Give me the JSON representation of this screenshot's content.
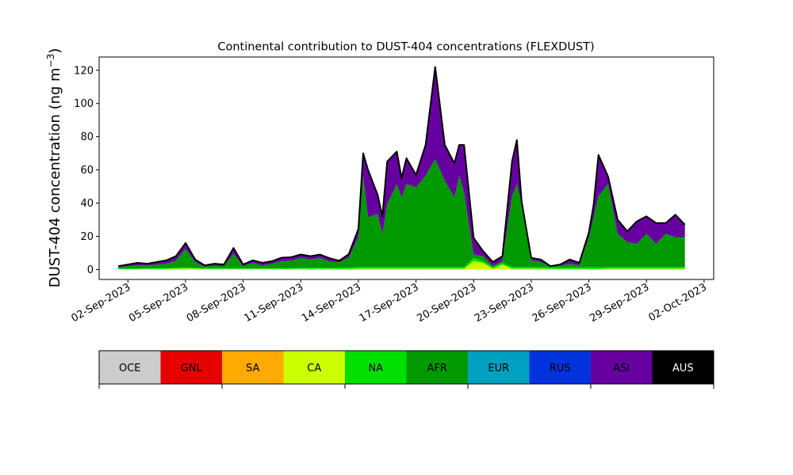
{
  "chart_data": {
    "type": "area",
    "stacked": true,
    "title": "Continental contribution to DUST-404 concentrations (FLEXDUST)",
    "ylabel": "DUST-404 concentration (ng m",
    "ylabel_sup": "−3",
    "ylabel_close": ")",
    "xlabel": "",
    "xlim": [
      "2023-08-31T12:00",
      "2023-10-02T12:00"
    ],
    "ylim": [
      -6,
      128
    ],
    "yticks": [
      0,
      20,
      40,
      60,
      80,
      100,
      120
    ],
    "xticks": [
      "2023-09-02",
      "2023-09-05",
      "2023-09-08",
      "2023-09-11",
      "2023-09-14",
      "2023-09-17",
      "2023-09-20",
      "2023-09-23",
      "2023-09-26",
      "2023-09-29",
      "2023-10-02"
    ],
    "xtick_labels": [
      "02-Sep-2023",
      "05-Sep-2023",
      "08-Sep-2023",
      "11-Sep-2023",
      "14-Sep-2023",
      "17-Sep-2023",
      "20-Sep-2023",
      "23-Sep-2023",
      "26-Sep-2023",
      "29-Sep-2023",
      "02-Oct-2023"
    ],
    "x": [
      "2023-09-01T12:00",
      "2023-09-02T00:00",
      "2023-09-02T12:00",
      "2023-09-03T00:00",
      "2023-09-03T12:00",
      "2023-09-04T00:00",
      "2023-09-04T12:00",
      "2023-09-05T00:00",
      "2023-09-05T12:00",
      "2023-09-06T00:00",
      "2023-09-06T12:00",
      "2023-09-07T00:00",
      "2023-09-07T12:00",
      "2023-09-08T00:00",
      "2023-09-08T12:00",
      "2023-09-09T00:00",
      "2023-09-09T12:00",
      "2023-09-10T00:00",
      "2023-09-10T12:00",
      "2023-09-11T00:00",
      "2023-09-11T12:00",
      "2023-09-12T00:00",
      "2023-09-12T12:00",
      "2023-09-13T00:00",
      "2023-09-13T12:00",
      "2023-09-14T00:00",
      "2023-09-14T06:00",
      "2023-09-14T12:00",
      "2023-09-15T00:00",
      "2023-09-15T06:00",
      "2023-09-15T12:00",
      "2023-09-16T00:00",
      "2023-09-16T06:00",
      "2023-09-16T12:00",
      "2023-09-17T00:00",
      "2023-09-17T12:00",
      "2023-09-18T00:00",
      "2023-09-18T12:00",
      "2023-09-19T00:00",
      "2023-09-19T06:00",
      "2023-09-19T12:00",
      "2023-09-20T00:00",
      "2023-09-20T12:00",
      "2023-09-21T00:00",
      "2023-09-21T12:00",
      "2023-09-22T00:00",
      "2023-09-22T06:00",
      "2023-09-22T12:00",
      "2023-09-23T00:00",
      "2023-09-23T12:00",
      "2023-09-24T00:00",
      "2023-09-24T12:00",
      "2023-09-25T00:00",
      "2023-09-25T12:00",
      "2023-09-26T00:00",
      "2023-09-26T06:00",
      "2023-09-26T12:00",
      "2023-09-27T00:00",
      "2023-09-27T12:00",
      "2023-09-28T00:00",
      "2023-09-28T12:00",
      "2023-09-29T00:00",
      "2023-09-29T12:00",
      "2023-09-30T00:00",
      "2023-09-30T12:00",
      "2023-10-01T00:00"
    ],
    "series": [
      {
        "name": "OCE",
        "color": "#cccccc",
        "values": [
          0,
          0,
          0,
          0,
          0,
          0,
          0,
          0,
          0,
          0,
          0,
          0,
          0,
          0,
          0,
          0,
          0,
          0,
          0,
          0,
          0,
          0,
          0,
          0,
          0,
          0,
          0,
          0,
          0,
          0,
          0,
          0,
          0,
          0,
          0,
          0,
          0,
          0,
          0,
          0,
          0,
          0,
          0,
          0,
          0,
          0,
          0,
          0,
          0,
          0,
          0,
          0,
          0,
          0,
          0,
          0,
          0,
          0,
          0,
          0,
          0,
          0,
          0,
          0,
          0,
          0
        ]
      },
      {
        "name": "GNL",
        "color": "#e60000",
        "values": [
          0,
          0,
          0,
          0,
          0,
          0,
          0,
          0,
          0,
          0,
          0,
          0,
          0,
          0,
          0,
          0,
          0,
          0,
          0,
          0,
          0,
          0,
          0,
          0,
          0,
          0,
          0,
          0,
          0,
          0,
          0,
          0,
          0,
          0,
          0,
          0,
          0,
          0,
          0,
          0,
          0,
          0,
          0,
          0,
          0,
          0,
          0,
          0,
          0,
          0,
          0,
          0,
          0,
          0,
          0,
          0,
          0,
          0,
          0,
          0,
          0,
          0,
          0,
          0,
          0,
          0
        ]
      },
      {
        "name": "SA",
        "color": "#ffaa00",
        "values": [
          0,
          0,
          0,
          0,
          0,
          0,
          0,
          0,
          0,
          0,
          0,
          0,
          0,
          0,
          0,
          0,
          0,
          0,
          0,
          0,
          0,
          0,
          0,
          0,
          0,
          0,
          0,
          0,
          0,
          0,
          0,
          0,
          0,
          0,
          0,
          0,
          0,
          0,
          0,
          0,
          0,
          0,
          0,
          0,
          0,
          0,
          0,
          0,
          0,
          0,
          0,
          0,
          0,
          0,
          0,
          0,
          0,
          0,
          0,
          0,
          0,
          0,
          0,
          0,
          0,
          0
        ]
      },
      {
        "name": "CA",
        "color": "#ccff00",
        "values": [
          0.2,
          0.2,
          0.2,
          0.3,
          0.3,
          0.4,
          0.5,
          0.6,
          0.5,
          0.3,
          0.3,
          0.3,
          0.3,
          0.3,
          0.3,
          0.3,
          0.3,
          0.3,
          0.3,
          0.3,
          0.3,
          0.3,
          0.3,
          0.3,
          0.3,
          0.5,
          0.5,
          0.5,
          0.5,
          0.5,
          0.5,
          0.5,
          0.5,
          0.5,
          0.5,
          0.5,
          0.5,
          0.5,
          0.5,
          0.5,
          0.5,
          5,
          4,
          0.5,
          3,
          0.5,
          0.5,
          0.5,
          0.5,
          0.5,
          0.3,
          0.3,
          0.3,
          0.3,
          0.3,
          0.3,
          0.3,
          0.5,
          0.5,
          0.5,
          0.5,
          0.5,
          0.5,
          0.5,
          0.5,
          0.5
        ]
      },
      {
        "name": "NA",
        "color": "#00e000",
        "values": [
          0.5,
          0.5,
          0.5,
          0.5,
          0.5,
          0.5,
          0.6,
          0.8,
          0.6,
          0.5,
          0.5,
          0.5,
          0.5,
          0.5,
          0.5,
          0.5,
          0.5,
          0.6,
          0.6,
          0.7,
          0.7,
          0.8,
          0.8,
          0.9,
          0.9,
          1,
          1,
          1,
          1,
          1,
          1,
          1,
          1,
          1,
          1,
          1,
          1,
          1,
          1,
          1,
          1,
          2,
          1,
          1,
          1,
          1,
          1,
          1,
          1,
          1,
          1,
          1,
          1,
          1,
          1,
          1,
          1,
          1,
          1,
          1,
          1,
          1,
          1,
          1,
          1,
          1
        ]
      },
      {
        "name": "AFR",
        "color": "#009900",
        "values": [
          0.8,
          1.3,
          1.8,
          1.7,
          2.2,
          2.6,
          4.4,
          11,
          3.4,
          0.9,
          1.6,
          1.2,
          8.7,
          1.2,
          3.2,
          1.7,
          2.7,
          4.2,
          4.5,
          6,
          5,
          5.9,
          3.7,
          3.1,
          6,
          18,
          55,
          30,
          32,
          20,
          38,
          50,
          42,
          50,
          48,
          55,
          65,
          52,
          42,
          55,
          45,
          2,
          3,
          0.5,
          1,
          43,
          50,
          38,
          4,
          3,
          0.7,
          1,
          2.2,
          1.2,
          18,
          30,
          43,
          50,
          20,
          15,
          14,
          20,
          14,
          20,
          18,
          18
        ]
      },
      {
        "name": "EUR",
        "color": "#00a0c0",
        "values": [
          0,
          0,
          0,
          0,
          0,
          0,
          0,
          0,
          0,
          0,
          0,
          0,
          0,
          0,
          0,
          0,
          0,
          0,
          0,
          0,
          0,
          0,
          0,
          0,
          0,
          0,
          0,
          0,
          0,
          0,
          0,
          0,
          0,
          0,
          0,
          0,
          0,
          0,
          0,
          0,
          0,
          0,
          0,
          0,
          0,
          0,
          0,
          0,
          0,
          0,
          0,
          0,
          0,
          0,
          0,
          0,
          0,
          0,
          0,
          0,
          0,
          0,
          0,
          0,
          0,
          0
        ]
      },
      {
        "name": "RUS",
        "color": "#0033dd",
        "values": [
          0,
          0,
          0,
          0,
          0,
          0,
          0,
          0,
          0,
          0,
          0,
          0,
          0,
          0,
          0,
          0,
          0,
          0,
          0,
          0,
          0,
          0,
          0,
          0,
          0,
          0,
          0,
          0,
          0,
          0,
          0,
          0,
          0,
          0,
          0,
          0,
          0,
          0,
          0,
          0,
          0,
          0,
          0,
          0,
          0,
          0,
          0,
          0,
          0,
          0,
          0,
          0,
          0,
          0,
          0,
          0,
          0,
          0,
          0,
          0,
          0,
          0,
          0,
          0,
          0,
          0
        ]
      },
      {
        "name": "ASI",
        "color": "#6600a0",
        "values": [
          0.5,
          1,
          1.5,
          1,
          1.5,
          2,
          2.5,
          3.6,
          1.5,
          0.8,
          1.1,
          1,
          3.5,
          1,
          1.5,
          1.5,
          1.5,
          2,
          2,
          2,
          2,
          2,
          2,
          1,
          2,
          5,
          13.5,
          28.5,
          11.5,
          10.5,
          25.5,
          19.5,
          11.5,
          15.5,
          7.5,
          18.5,
          55.5,
          21.5,
          20.5,
          18.5,
          28.5,
          10,
          3,
          2.5,
          3,
          20.5,
          26.5,
          1.5,
          1.5,
          1.5,
          0,
          0.7,
          2.5,
          1.5,
          3,
          7.7,
          24.7,
          4.5,
          8.5,
          6.5,
          13.5,
          10.5,
          12.5,
          6.5,
          13.5,
          7.5
        ]
      },
      {
        "name": "AUS",
        "color": "#000000",
        "values": [
          0,
          0,
          0,
          0,
          0,
          0,
          0,
          0,
          0,
          0,
          0,
          0,
          0,
          0,
          0,
          0,
          0,
          0,
          0,
          0,
          0,
          0,
          0,
          0,
          0,
          0,
          0,
          0,
          0,
          0,
          0,
          0,
          0,
          0,
          0,
          0,
          0,
          0,
          0,
          0,
          0,
          0,
          0,
          0,
          0,
          0,
          0,
          0,
          0,
          0,
          0,
          0,
          0,
          0,
          0,
          0,
          0,
          0,
          0,
          0,
          0,
          0,
          0,
          0,
          0,
          0
        ]
      }
    ],
    "total_line_color": "#000000",
    "legend_placement": "bottom-colorbar",
    "grid": false
  }
}
